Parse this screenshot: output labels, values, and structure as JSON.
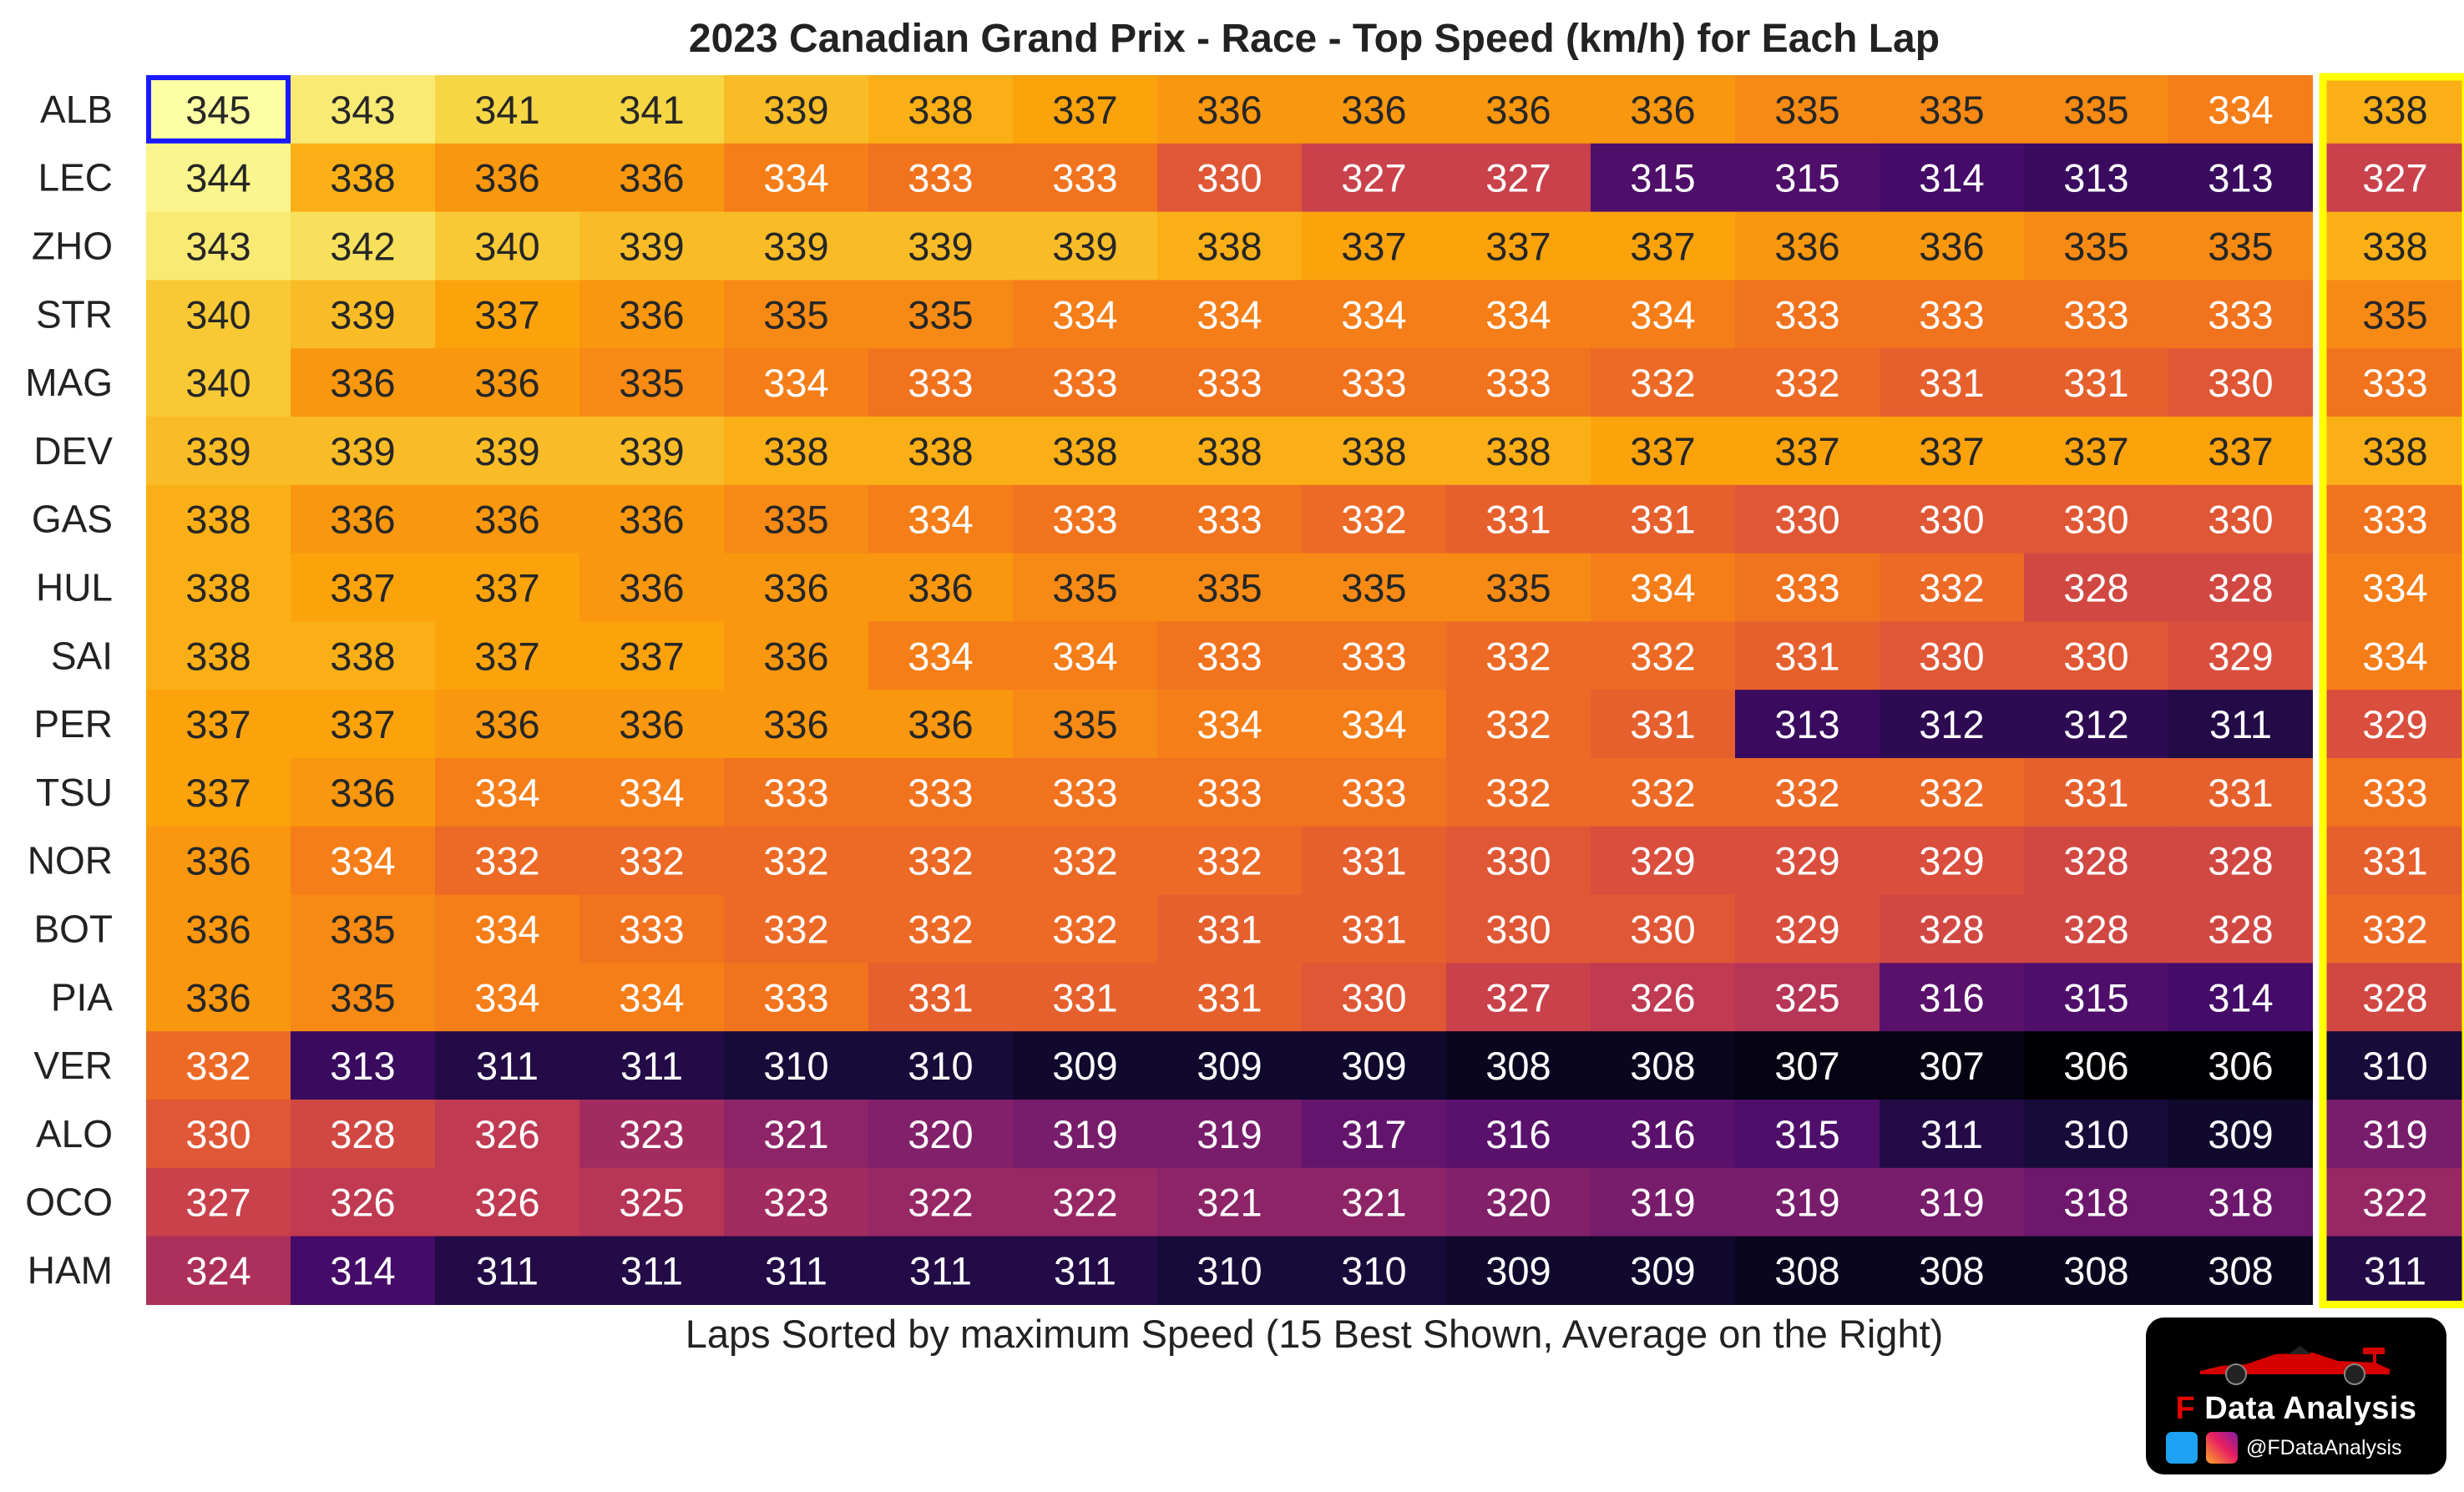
{
  "chart_data": {
    "type": "heatmap",
    "title": "2023 Canadian Grand Prix - Race - Top Speed (km/h) for Each Lap",
    "xlabel": "Laps Sorted by maximum Speed (15 Best Shown, Average on the Right)",
    "ylabel": "",
    "colormap": "inferno",
    "value_range": [
      306,
      345
    ],
    "rows": [
      "ALB",
      "LEC",
      "ZHO",
      "STR",
      "MAG",
      "DEV",
      "GAS",
      "HUL",
      "SAI",
      "PER",
      "TSU",
      "NOR",
      "BOT",
      "PIA",
      "VER",
      "ALO",
      "OCO",
      "HAM"
    ],
    "values": [
      [
        345,
        343,
        341,
        341,
        339,
        338,
        337,
        336,
        336,
        336,
        336,
        335,
        335,
        335,
        334
      ],
      [
        344,
        338,
        336,
        336,
        334,
        333,
        333,
        330,
        327,
        327,
        315,
        315,
        314,
        313,
        313
      ],
      [
        343,
        342,
        340,
        339,
        339,
        339,
        339,
        338,
        337,
        337,
        337,
        336,
        336,
        335,
        335
      ],
      [
        340,
        339,
        337,
        336,
        335,
        335,
        334,
        334,
        334,
        334,
        334,
        333,
        333,
        333,
        333
      ],
      [
        340,
        336,
        336,
        335,
        334,
        333,
        333,
        333,
        333,
        333,
        332,
        332,
        331,
        331,
        330
      ],
      [
        339,
        339,
        339,
        339,
        338,
        338,
        338,
        338,
        338,
        338,
        337,
        337,
        337,
        337,
        337
      ],
      [
        338,
        336,
        336,
        336,
        335,
        334,
        333,
        333,
        332,
        331,
        331,
        330,
        330,
        330,
        330
      ],
      [
        338,
        337,
        337,
        336,
        336,
        336,
        335,
        335,
        335,
        335,
        334,
        333,
        332,
        328,
        328
      ],
      [
        338,
        338,
        337,
        337,
        336,
        334,
        334,
        333,
        333,
        332,
        332,
        331,
        330,
        330,
        329
      ],
      [
        337,
        337,
        336,
        336,
        336,
        336,
        335,
        334,
        334,
        332,
        331,
        313,
        312,
        312,
        311
      ],
      [
        337,
        336,
        334,
        334,
        333,
        333,
        333,
        333,
        333,
        332,
        332,
        332,
        332,
        331,
        331
      ],
      [
        336,
        334,
        332,
        332,
        332,
        332,
        332,
        332,
        331,
        330,
        329,
        329,
        329,
        328,
        328
      ],
      [
        336,
        335,
        334,
        333,
        332,
        332,
        332,
        331,
        331,
        330,
        330,
        329,
        328,
        328,
        328
      ],
      [
        336,
        335,
        334,
        334,
        333,
        331,
        331,
        331,
        330,
        327,
        326,
        325,
        316,
        315,
        314
      ],
      [
        332,
        313,
        311,
        311,
        310,
        310,
        309,
        309,
        309,
        308,
        308,
        307,
        307,
        306,
        306
      ],
      [
        330,
        328,
        326,
        323,
        321,
        320,
        319,
        319,
        317,
        316,
        316,
        315,
        311,
        310,
        309
      ],
      [
        327,
        326,
        326,
        325,
        323,
        322,
        322,
        321,
        321,
        320,
        319,
        319,
        319,
        318,
        318
      ],
      [
        324,
        314,
        311,
        311,
        311,
        311,
        311,
        310,
        310,
        309,
        309,
        308,
        308,
        308,
        308
      ]
    ],
    "averages": [
      338,
      327,
      338,
      335,
      333,
      338,
      333,
      334,
      334,
      329,
      333,
      331,
      332,
      328,
      310,
      319,
      322,
      311
    ],
    "highlight_max_color": "#1a1aff",
    "highlight_avg_color": "#ffff00"
  },
  "logo": {
    "brand_f": "F",
    "brand_name": "Data Analysis",
    "handle": "@FDataAnalysis",
    "icons": [
      "twitter-icon",
      "instagram-icon"
    ]
  }
}
